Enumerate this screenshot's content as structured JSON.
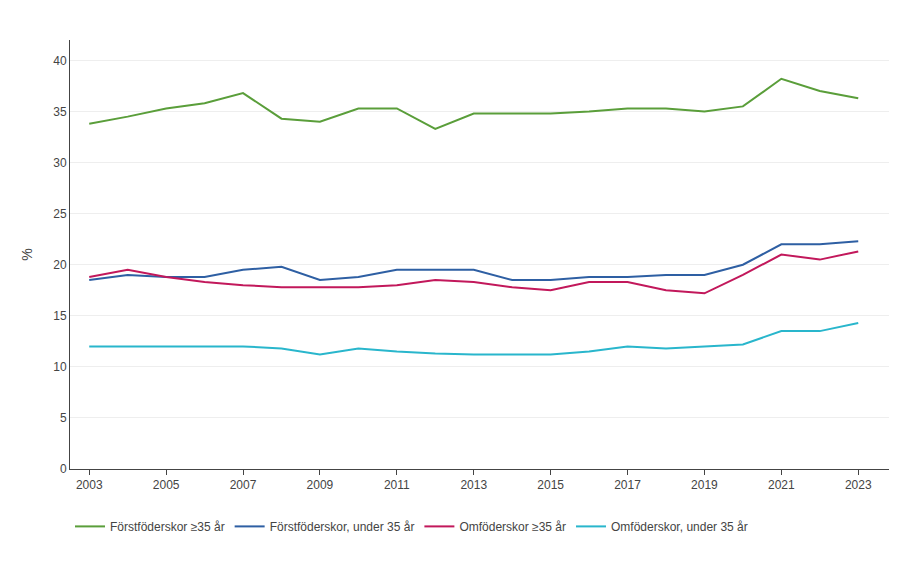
{
  "chart_data": {
    "type": "line",
    "ylabel": "%",
    "x": [
      2003,
      2004,
      2005,
      2006,
      2007,
      2008,
      2009,
      2010,
      2011,
      2012,
      2013,
      2014,
      2015,
      2016,
      2017,
      2018,
      2019,
      2020,
      2021,
      2022,
      2023
    ],
    "series": [
      {
        "name": "Förstföderskor ≥35 år",
        "color": "#5a9e3a",
        "values": [
          33.8,
          34.5,
          35.3,
          35.8,
          36.8,
          34.3,
          34.0,
          35.3,
          35.3,
          33.3,
          34.8,
          34.8,
          34.8,
          35.0,
          35.3,
          35.3,
          35.0,
          35.5,
          38.2,
          37.0,
          36.3
        ]
      },
      {
        "name": "Förstföderskor, under 35 år",
        "color": "#2e5fa3",
        "values": [
          18.5,
          19.0,
          18.8,
          18.8,
          19.5,
          19.8,
          18.5,
          18.8,
          19.5,
          19.5,
          19.5,
          18.5,
          18.5,
          18.8,
          18.8,
          19.0,
          19.0,
          20.0,
          22.0,
          22.0,
          22.3
        ]
      },
      {
        "name": "Omföderskor ≥35 år",
        "color": "#c2185b",
        "values": [
          18.8,
          19.5,
          18.8,
          18.3,
          18.0,
          17.8,
          17.8,
          17.8,
          18.0,
          18.5,
          18.3,
          17.8,
          17.5,
          18.3,
          18.3,
          17.5,
          17.2,
          19.0,
          21.0,
          20.5,
          21.3
        ]
      },
      {
        "name": "Omföderskor, under 35 år",
        "color": "#29b6cc",
        "values": [
          12.0,
          12.0,
          12.0,
          12.0,
          12.0,
          11.8,
          11.2,
          11.8,
          11.5,
          11.3,
          11.2,
          11.2,
          11.2,
          11.5,
          12.0,
          11.8,
          12.0,
          12.2,
          13.5,
          13.5,
          14.3
        ]
      }
    ],
    "xlim": [
      2002.5,
      2023.8
    ],
    "xticks": [
      2003,
      2005,
      2007,
      2009,
      2011,
      2013,
      2015,
      2017,
      2019,
      2021,
      2023
    ],
    "ylim": [
      0,
      42
    ],
    "yticks": [
      0,
      5,
      10,
      15,
      20,
      25,
      30,
      35,
      40
    ],
    "grid": true,
    "legend": "bottom"
  }
}
